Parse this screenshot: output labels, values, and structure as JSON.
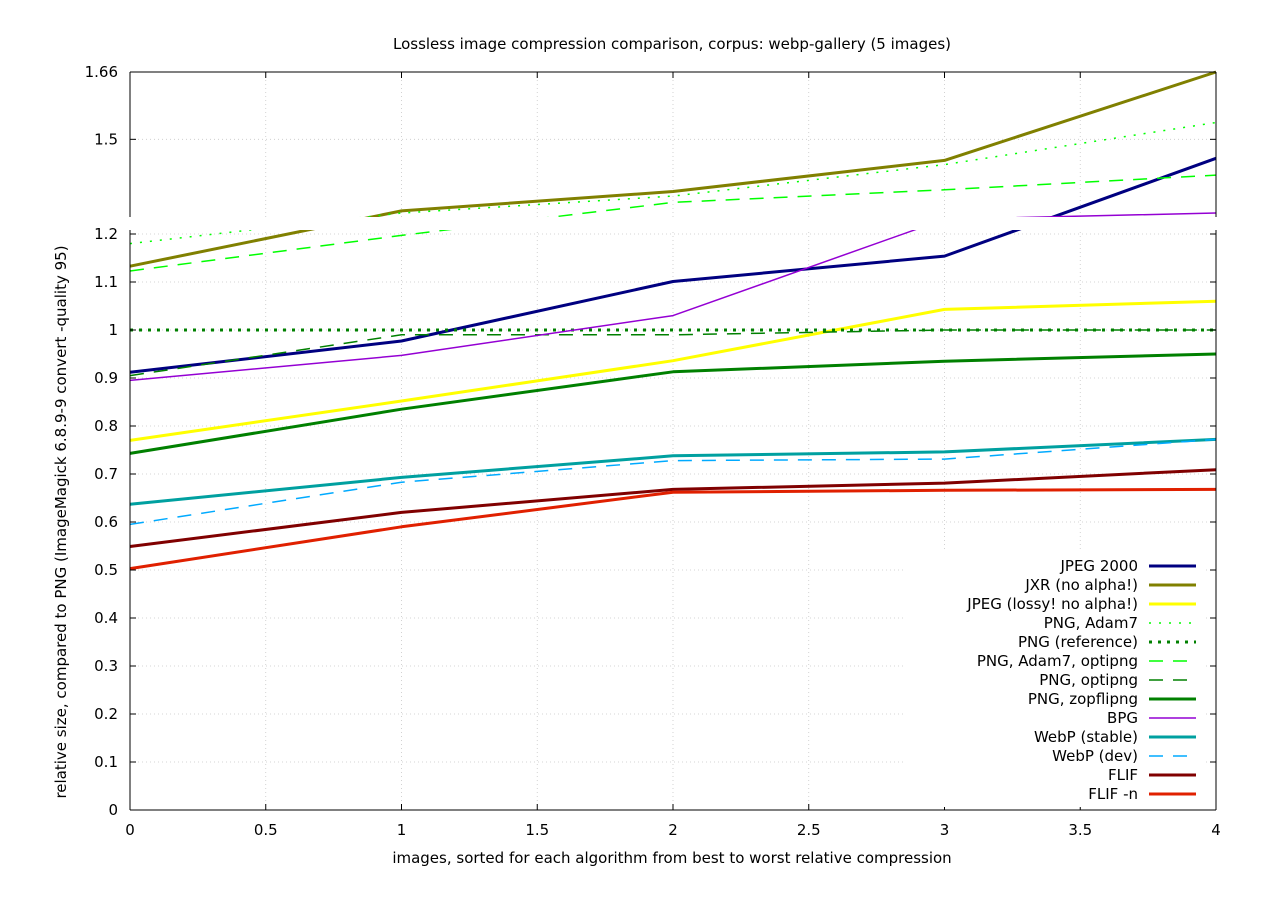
{
  "chart_data": {
    "type": "line",
    "title": "Lossless image compression comparison, corpus: webp-gallery (5 images)",
    "xlabel": "images, sorted for each algorithm from best to worst relative compression",
    "ylabel": "relative size, compared to PNG (ImageMagick 6.8.9-9 convert -quality 95)",
    "xlim": [
      0,
      4
    ],
    "ylim": [
      0,
      1.66
    ],
    "y_axis_break": {
      "lower_max": 1.2,
      "upper_min": 1.275,
      "upper_max": 1.66
    },
    "xticks": [
      "0",
      "0.5",
      "1",
      "1.5",
      "2",
      "2.5",
      "3",
      "3.5",
      "4"
    ],
    "yticks_lower": [
      "0",
      "0.1",
      "0.2",
      "0.3",
      "0.4",
      "0.5",
      "0.6",
      "0.7",
      "0.8",
      "0.9",
      "1",
      "1.1",
      "1.2"
    ],
    "yticks_upper": [
      "1.5",
      "1.66"
    ],
    "grid": true,
    "legend_position": "bottom-right",
    "x": [
      0,
      1,
      2,
      3,
      4
    ],
    "series": [
      {
        "name": "JPEG 2000",
        "values": [
          0.912,
          0.977,
          1.101,
          1.154,
          1.455
        ],
        "color": "#000080",
        "dash": "solid",
        "width": 3
      },
      {
        "name": "JXR (no alpha!)",
        "values": [
          1.133,
          1.33,
          1.376,
          1.45,
          1.66
        ],
        "color": "#808000",
        "dash": "solid",
        "width": 3
      },
      {
        "name": "JPEG (lossy! no alpha!)",
        "values": [
          0.77,
          0.852,
          0.936,
          1.043,
          1.06
        ],
        "color": "#ffff00",
        "dash": "solid",
        "width": 3
      },
      {
        "name": "PNG, Adam7",
        "values": [
          1.18,
          1.325,
          1.365,
          1.44,
          1.54
        ],
        "color": "#00ff00",
        "dash": "dotted",
        "width": 1.5
      },
      {
        "name": "PNG (reference)",
        "values": [
          1.0,
          1.0,
          1.0,
          1.0,
          1.0
        ],
        "color": "#008000",
        "dash": "dotted-heavy",
        "width": 3
      },
      {
        "name": "PNG, Adam7, optipng",
        "values": [
          1.123,
          1.197,
          1.35,
          1.38,
          1.415
        ],
        "color": "#00ff00",
        "dash": "dashed",
        "width": 1.5
      },
      {
        "name": "PNG, optipng",
        "values": [
          0.905,
          0.99,
          0.99,
          1.0,
          1.0
        ],
        "color": "#008000",
        "dash": "dashed",
        "width": 1.5
      },
      {
        "name": "PNG, zopflipng",
        "values": [
          0.743,
          0.835,
          0.913,
          0.935,
          0.95
        ],
        "color": "#008000",
        "dash": "solid",
        "width": 3
      },
      {
        "name": "BPG",
        "values": [
          0.895,
          0.947,
          1.03,
          1.31,
          1.325
        ],
        "color": "#9400d3",
        "dash": "solid",
        "width": 1.5
      },
      {
        "name": "WebP (stable)",
        "values": [
          0.637,
          0.693,
          0.738,
          0.746,
          0.772
        ],
        "color": "#00a0a0",
        "dash": "solid",
        "width": 3
      },
      {
        "name": "WebP (dev)",
        "values": [
          0.595,
          0.683,
          0.728,
          0.731,
          0.772
        ],
        "color": "#00aaff",
        "dash": "dashed",
        "width": 1.5
      },
      {
        "name": "FLIF",
        "values": [
          0.549,
          0.62,
          0.668,
          0.681,
          0.709
        ],
        "color": "#800000",
        "dash": "solid",
        "width": 3
      },
      {
        "name": "FLIF -n",
        "values": [
          0.503,
          0.59,
          0.662,
          0.666,
          0.668
        ],
        "color": "#e02000",
        "dash": "solid",
        "width": 3
      }
    ]
  }
}
